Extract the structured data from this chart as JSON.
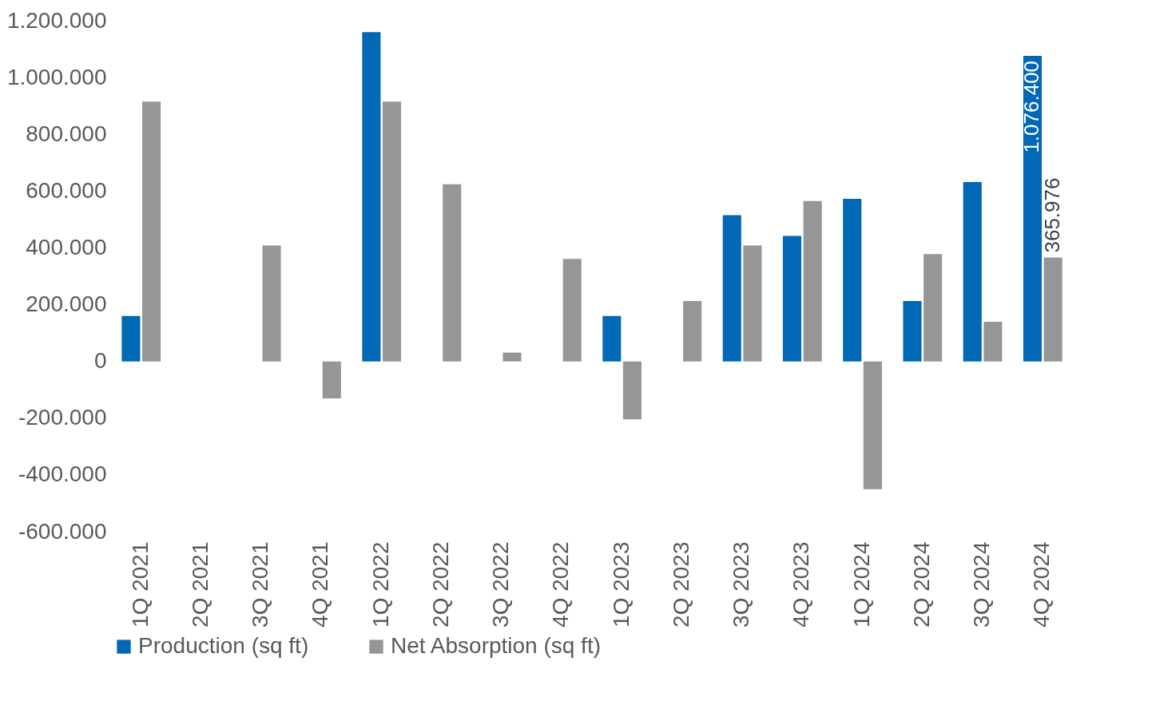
{
  "chart_data": {
    "type": "bar",
    "categories": [
      "1Q 2021",
      "2Q 2021",
      "3Q 2021",
      "4Q 2021",
      "1Q 2022",
      "2Q 2022",
      "3Q 2022",
      "4Q 2022",
      "1Q 2023",
      "2Q 2023",
      "3Q 2023",
      "4Q 2023",
      "1Q 2024",
      "2Q 2024",
      "3Q 2024",
      "4Q 2024"
    ],
    "series": [
      {
        "name": "Production (sq ft)",
        "color": "#0068b5",
        "values": [
          160000,
          null,
          null,
          null,
          1160000,
          null,
          null,
          null,
          160000,
          null,
          515000,
          442000,
          573000,
          213000,
          632000,
          1076400
        ],
        "value_labels": [
          null,
          null,
          null,
          null,
          null,
          null,
          null,
          null,
          null,
          null,
          null,
          null,
          null,
          null,
          null,
          "1.076.400"
        ]
      },
      {
        "name": "Net Absorption (sq ft)",
        "color": "#969696",
        "values": [
          915000,
          null,
          408000,
          -130000,
          915000,
          624000,
          31000,
          361000,
          -204000,
          213000,
          408000,
          565000,
          -450000,
          378000,
          140000,
          365976
        ],
        "value_labels": [
          null,
          null,
          null,
          null,
          null,
          null,
          null,
          null,
          null,
          null,
          null,
          null,
          null,
          null,
          null,
          "365.976"
        ]
      }
    ],
    "ylim": [
      -600000,
      1200000
    ],
    "yticks": [
      {
        "value": -600000,
        "label": "-600.000"
      },
      {
        "value": -400000,
        "label": "-400.000"
      },
      {
        "value": -200000,
        "label": "-200.000"
      },
      0,
      {
        "value": 200000,
        "label": "200.000"
      },
      {
        "value": 400000,
        "label": "400.000"
      },
      {
        "value": 600000,
        "label": "600.000"
      },
      {
        "value": 800000,
        "label": "800.000"
      },
      {
        "value": 1000000,
        "label": "1.000.000"
      },
      {
        "value": 1200000,
        "label": "1.200.000"
      }
    ],
    "grid": false,
    "legend": "bottom"
  }
}
